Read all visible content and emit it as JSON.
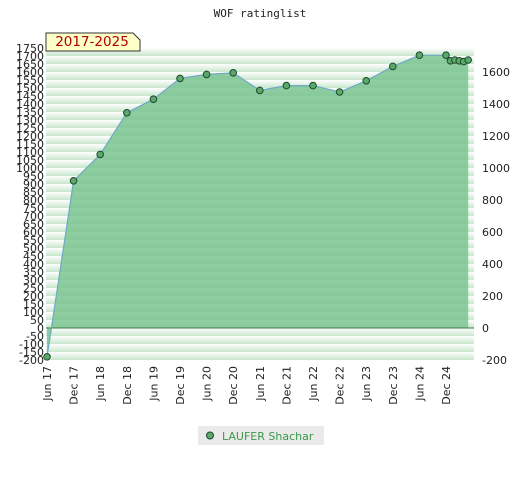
{
  "chart_data": {
    "type": "area",
    "title": "WOF ratinglist",
    "period": "2017-2025",
    "x_tick_labels": [
      "Jun 17",
      "Dec 17",
      "Jun 18",
      "Dec 18",
      "Jun 19",
      "Dec 19",
      "Jun 20",
      "Dec 20",
      "Jun 21",
      "Dec 21",
      "Jun 22",
      "Dec 22",
      "Jun 23",
      "Dec 23",
      "Jun 24",
      "Dec 24"
    ],
    "y_left_ticks": [
      1750,
      1700,
      1650,
      1600,
      1550,
      1500,
      1450,
      1400,
      1350,
      1300,
      1250,
      1200,
      1150,
      1100,
      1050,
      1000,
      950,
      900,
      850,
      800,
      750,
      700,
      650,
      600,
      550,
      500,
      450,
      400,
      350,
      300,
      250,
      200,
      150,
      100,
      50,
      0,
      -50,
      -100,
      -150,
      -200
    ],
    "y_right_ticks": [
      1600,
      1400,
      1200,
      1000,
      800,
      600,
      400,
      200,
      0,
      -200
    ],
    "ylim": [
      -200,
      1750
    ],
    "grid": true,
    "legend_position": "bottom",
    "series": [
      {
        "name": "LAUFER Shachar",
        "x": [
          "Jun 17",
          "Jul 17",
          "Dec 17",
          "Jun 18",
          "Dec 18",
          "Jun 19",
          "Dec 19",
          "Jun 20",
          "Dec 20",
          "Jun 21",
          "Dec 21",
          "Jun 22",
          "Dec 22",
          "Jun 23",
          "Dec 23",
          "Jun 24",
          "Dec 24",
          "Jan 25",
          "Feb 25",
          "Mar 25",
          "Apr 25",
          "May 25"
        ],
        "values": [
          -180,
          0,
          920,
          1085,
          1345,
          1430,
          1560,
          1585,
          1595,
          1485,
          1515,
          1515,
          1475,
          1545,
          1635,
          1705,
          1705,
          1670,
          1675,
          1670,
          1665,
          1675
        ],
        "marker_values": [
          -180,
          null,
          920,
          1085,
          1345,
          1430,
          1560,
          1585,
          1595,
          1485,
          1515,
          1515,
          1475,
          1545,
          1635,
          1705,
          1705,
          1670,
          1675,
          1670,
          1665,
          1675
        ],
        "fill_color": "#7bc492",
        "line_color": "#6fa8c8",
        "marker_color": "#5aa86a"
      }
    ]
  }
}
